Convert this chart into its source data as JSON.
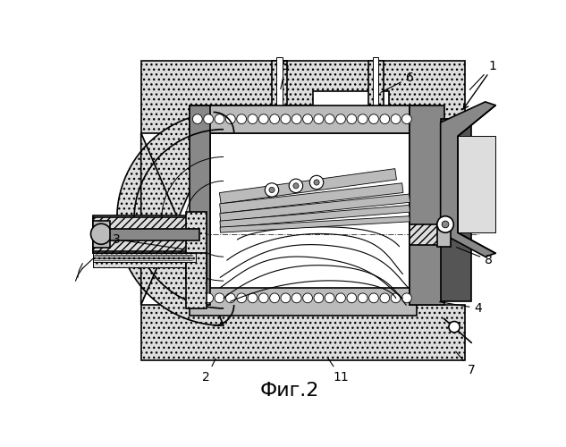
{
  "title": "Фиг.2",
  "title_fontsize": 16,
  "background_color": "#ffffff",
  "fig_width": 6.33,
  "fig_height": 5.0,
  "dpi": 100,
  "lw_main": 1.2,
  "lw_thin": 0.7,
  "lw_thick": 2.0,
  "gray_dark": "#555555",
  "gray_mid": "#888888",
  "gray_light": "#bbbbbb",
  "gray_very_light": "#dddddd",
  "white": "#ffffff",
  "black": "#000000"
}
